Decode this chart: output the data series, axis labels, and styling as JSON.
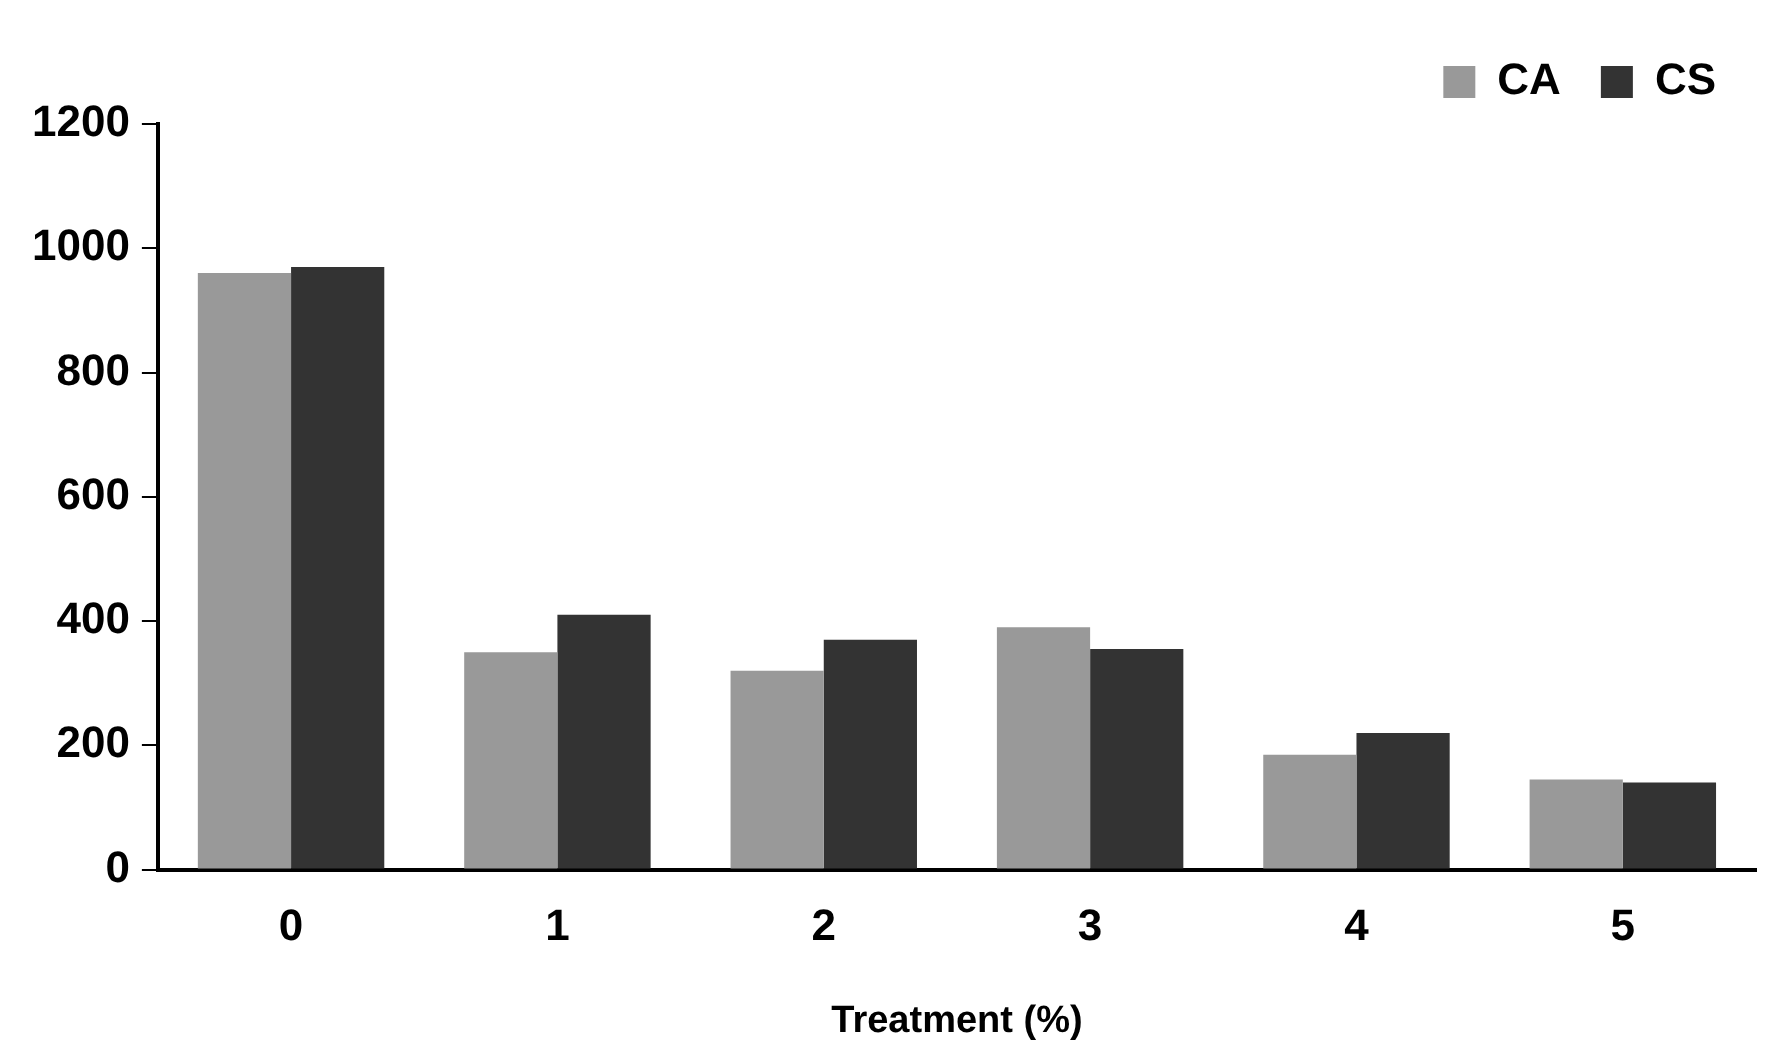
{
  "chart_data": {
    "type": "bar",
    "xlabel": "Treatment (%)",
    "categories": [
      "0",
      "1",
      "2",
      "3",
      "4",
      "5"
    ],
    "series": [
      {
        "name": "CA",
        "color": "#999999",
        "values": [
          960,
          350,
          320,
          390,
          185,
          145
        ]
      },
      {
        "name": "CS",
        "color": "#333333",
        "values": [
          970,
          410,
          370,
          355,
          220,
          140
        ]
      }
    ],
    "ylim": [
      0,
      1200
    ],
    "yticks": [
      0,
      200,
      400,
      600,
      800,
      1000,
      1200
    ],
    "grid": false,
    "legend": "top right"
  }
}
